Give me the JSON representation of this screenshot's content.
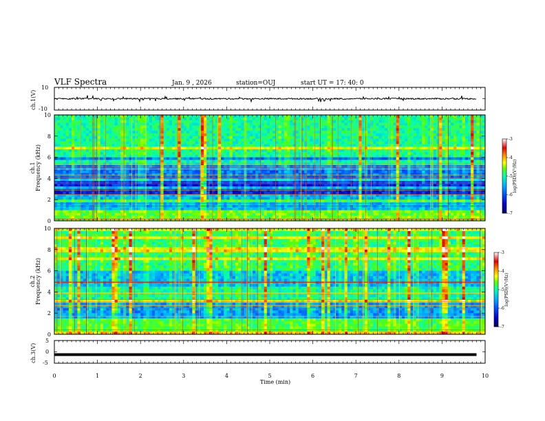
{
  "header": {
    "title": "VLF Spectra",
    "date": "Jan. 9 , 2026",
    "station": "station=OUJ",
    "start": "start UT = 17: 40: 0"
  },
  "chart_data": [
    {
      "type": "line",
      "panel": "ch1-voltage",
      "ylabel": "ch.1(V)",
      "ylim": [
        -10,
        10
      ],
      "yticks": [
        "10",
        "-10"
      ],
      "xlim": [
        0,
        10
      ],
      "approx_level": 0,
      "note_values": "noisy trace near 0 V with spikes up to about +2 V and down to about -2 V"
    },
    {
      "type": "heatmap",
      "panel": "ch1-spectrogram",
      "ylabel": "ch.1 Frequency (kHz)",
      "ylabel_lines": [
        "ch.1",
        "Frequency (kHz)"
      ],
      "ylim": [
        0,
        10
      ],
      "yticks": [
        "0",
        "2",
        "4",
        "6",
        "8",
        "10"
      ],
      "xlim": [
        0,
        10
      ],
      "color_range": [
        -7,
        -3
      ],
      "colorbar_label": "log(PSD)(V²/Hz)",
      "colorbar_ticks": [
        "-3",
        "-4",
        "-5",
        "-6",
        "-7"
      ]
    },
    {
      "type": "heatmap",
      "panel": "ch2-spectrogram",
      "ylabel": "ch.2 Frequency (kHz)",
      "ylabel_lines": [
        "ch.2",
        "Frequency (kHz)"
      ],
      "ylim": [
        0,
        10
      ],
      "yticks": [
        "0",
        "2",
        "4",
        "6",
        "8",
        "10"
      ],
      "xlim": [
        0,
        10
      ],
      "color_range": [
        -7,
        -3
      ],
      "colorbar_label": "log(PSD)(V²/Hz)",
      "colorbar_ticks": [
        "-3",
        "-4",
        "-5",
        "-6",
        "-7"
      ]
    },
    {
      "type": "line",
      "panel": "ch3-voltage",
      "ylabel": "ch.3(V)",
      "ylim": [
        -5,
        5
      ],
      "yticks": [
        "5",
        "0",
        "-5"
      ],
      "xlim": [
        0,
        10
      ],
      "approx_level": -1.2,
      "note_values": "flat thick trace at about -1.2 V"
    }
  ],
  "xaxis": {
    "label": "Time (min)",
    "ticks": [
      "0",
      "1",
      "2",
      "3",
      "4",
      "5",
      "6",
      "7",
      "8",
      "9",
      "10"
    ]
  },
  "colors": {
    "trace": "#000000",
    "colormap": [
      "#000060",
      "#0000c8",
      "#0050ff",
      "#00b4ff",
      "#00ffb4",
      "#5aff00",
      "#ffff00",
      "#ff8c00",
      "#e60000",
      "#ffffff"
    ]
  }
}
